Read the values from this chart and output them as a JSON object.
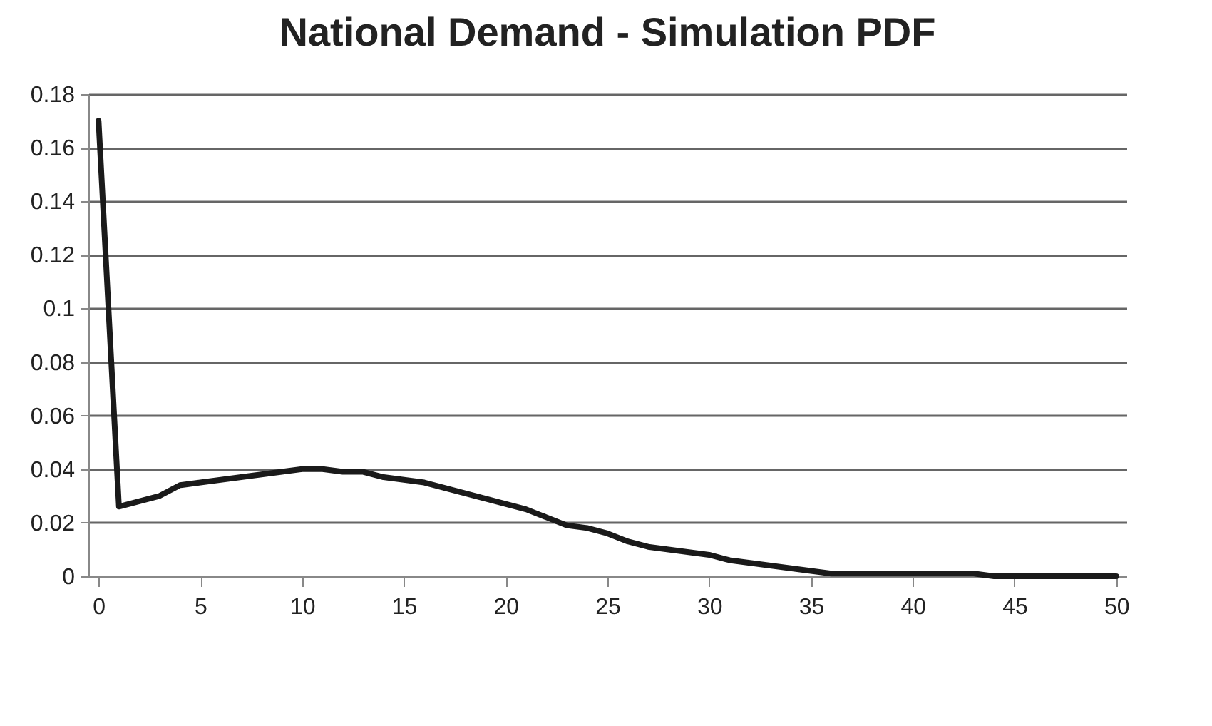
{
  "chart_data": {
    "type": "line",
    "title": "National Demand - Simulation PDF",
    "x": [
      0,
      1,
      2,
      3,
      4,
      5,
      6,
      7,
      8,
      9,
      10,
      11,
      12,
      13,
      14,
      15,
      16,
      17,
      18,
      19,
      20,
      21,
      22,
      23,
      24,
      25,
      26,
      27,
      28,
      29,
      30,
      31,
      32,
      33,
      34,
      35,
      36,
      37,
      38,
      39,
      40,
      41,
      42,
      43,
      44,
      45,
      46,
      47,
      48,
      49,
      50
    ],
    "series": [
      {
        "color": "#1a1a1a",
        "values": [
          0.17,
          0.026,
          0.028,
          0.03,
          0.034,
          0.035,
          0.036,
          0.037,
          0.038,
          0.039,
          0.04,
          0.04,
          0.039,
          0.039,
          0.037,
          0.036,
          0.035,
          0.033,
          0.031,
          0.029,
          0.027,
          0.025,
          0.022,
          0.019,
          0.018,
          0.016,
          0.013,
          0.011,
          0.01,
          0.009,
          0.008,
          0.006,
          0.005,
          0.004,
          0.003,
          0.002,
          0.001,
          0.001,
          0.001,
          0.001,
          0.001,
          0.001,
          0.001,
          0.001,
          0,
          0,
          0,
          0,
          0,
          0,
          0
        ]
      }
    ],
    "xlim": [
      -0.5,
      50.5
    ],
    "xticks": [
      0,
      5,
      10,
      15,
      20,
      25,
      30,
      35,
      40,
      45,
      50
    ],
    "ylim": [
      0,
      0.18
    ],
    "yticks": [
      0,
      0.02,
      0.04,
      0.06,
      0.08,
      0.1,
      0.12,
      0.14,
      0.16,
      0.18
    ],
    "grid": "y",
    "marker": "none",
    "line_style": "solid"
  }
}
